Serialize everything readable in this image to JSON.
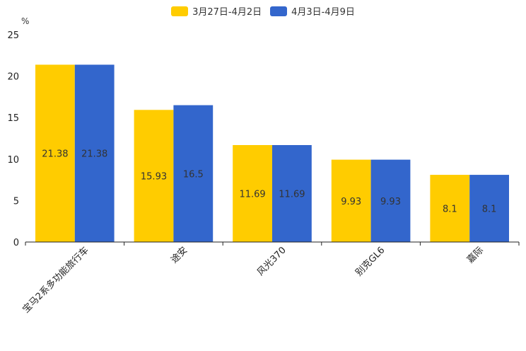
{
  "chart_data": {
    "type": "bar",
    "title": "",
    "ylabel": "%",
    "xlabel": "",
    "ylim": [
      0,
      25
    ],
    "yticks": [
      0,
      5,
      10,
      15,
      20,
      25
    ],
    "categories": [
      "宝马2系多功能旅行车",
      "途安",
      "风光370",
      "别克GL6",
      "嘉际"
    ],
    "series": [
      {
        "name": "3月27日-4月2日",
        "color": "#FFCC00",
        "values": [
          21.38,
          15.93,
          11.69,
          9.93,
          8.1
        ]
      },
      {
        "name": "4月3日-4月9日",
        "color": "#3366CC",
        "values": [
          21.38,
          16.5,
          11.69,
          9.93,
          8.1
        ]
      }
    ],
    "legend_position": "top-center",
    "grid": false
  }
}
